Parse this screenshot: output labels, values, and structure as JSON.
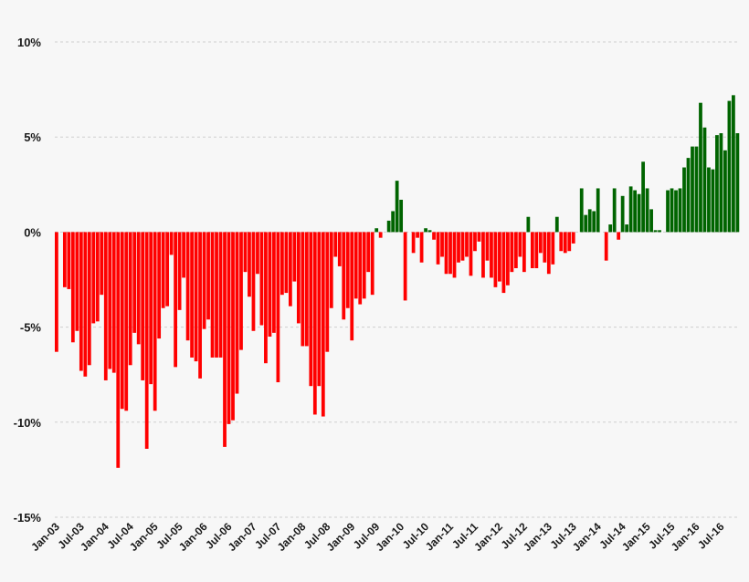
{
  "chart_data": {
    "type": "bar",
    "title": "",
    "xlabel": "",
    "ylabel": "",
    "ylim": [
      -15,
      10
    ],
    "grid": true,
    "legend": "none",
    "yticks": [
      {
        "value": 10,
        "label": "10%"
      },
      {
        "value": 5,
        "label": "5%"
      },
      {
        "value": 0,
        "label": "0%"
      },
      {
        "value": -5,
        "label": "-5%"
      },
      {
        "value": -10,
        "label": "-10%"
      },
      {
        "value": -15,
        "label": "-15%"
      }
    ],
    "xticks": [
      {
        "index": 0,
        "label": "Jan-03"
      },
      {
        "index": 6,
        "label": "Jul-03"
      },
      {
        "index": 12,
        "label": "Jan-04"
      },
      {
        "index": 18,
        "label": "Jul-04"
      },
      {
        "index": 24,
        "label": "Jan-05"
      },
      {
        "index": 30,
        "label": "Jul-05"
      },
      {
        "index": 36,
        "label": "Jan-06"
      },
      {
        "index": 42,
        "label": "Jul-06"
      },
      {
        "index": 48,
        "label": "Jan-07"
      },
      {
        "index": 54,
        "label": "Jul-07"
      },
      {
        "index": 60,
        "label": "Jan-08"
      },
      {
        "index": 66,
        "label": "Jul-08"
      },
      {
        "index": 72,
        "label": "Jan-09"
      },
      {
        "index": 78,
        "label": "Jul-09"
      },
      {
        "index": 84,
        "label": "Jan-10"
      },
      {
        "index": 90,
        "label": "Jul-10"
      },
      {
        "index": 96,
        "label": "Jan-11"
      },
      {
        "index": 102,
        "label": "Jul-11"
      },
      {
        "index": 108,
        "label": "Jan-12"
      },
      {
        "index": 114,
        "label": "Jul-12"
      },
      {
        "index": 120,
        "label": "Jan-13"
      },
      {
        "index": 126,
        "label": "Jul-13"
      },
      {
        "index": 132,
        "label": "Jan-14"
      },
      {
        "index": 138,
        "label": "Jul-14"
      },
      {
        "index": 144,
        "label": "Jan-15"
      },
      {
        "index": 150,
        "label": "Jul-15"
      },
      {
        "index": 156,
        "label": "Jan-16"
      },
      {
        "index": 162,
        "label": "Jul-16"
      }
    ],
    "colors": {
      "positive": "#006400",
      "negative": "#ff0000"
    },
    "values": [
      -6.3,
      0.0,
      -2.9,
      -3.0,
      -5.8,
      -5.2,
      -7.3,
      -7.6,
      -7.0,
      -4.8,
      -4.7,
      -3.3,
      -7.8,
      -7.2,
      -7.4,
      -12.4,
      -9.3,
      -9.4,
      -7.0,
      -5.3,
      -5.9,
      -7.8,
      -11.4,
      -8.0,
      -9.4,
      -5.6,
      -4.0,
      -3.9,
      -1.2,
      -7.1,
      -4.1,
      -2.4,
      -5.7,
      -6.6,
      -6.8,
      -7.7,
      -5.1,
      -4.6,
      -6.6,
      -6.6,
      -6.6,
      -11.3,
      -10.1,
      -9.9,
      -8.5,
      -6.2,
      -2.1,
      -3.4,
      -5.2,
      -2.2,
      -4.9,
      -6.9,
      -5.5,
      -5.3,
      -7.9,
      -3.3,
      -3.2,
      -3.9,
      -2.6,
      -4.8,
      -6.0,
      -6.0,
      -8.1,
      -9.6,
      -8.1,
      -9.7,
      -6.3,
      -4.0,
      -1.3,
      -1.8,
      -4.6,
      -4.0,
      -5.7,
      -3.5,
      -3.8,
      -3.5,
      -2.1,
      -3.3,
      0.2,
      -0.3,
      0.0,
      0.6,
      1.1,
      2.7,
      1.7,
      -3.6,
      0.0,
      -1.1,
      -0.3,
      -1.6,
      0.2,
      0.1,
      -0.4,
      -1.7,
      -1.3,
      -2.2,
      -2.2,
      -2.4,
      -1.6,
      -1.5,
      -1.3,
      -2.3,
      -1.0,
      -0.5,
      -2.4,
      -1.5,
      -2.4,
      -2.9,
      -2.6,
      -3.2,
      -2.8,
      -2.1,
      -1.9,
      -1.3,
      -2.1,
      0.8,
      -1.9,
      -1.9,
      -1.1,
      -1.6,
      -2.2,
      -1.7,
      0.8,
      -1.0,
      -1.1,
      -1.0,
      -0.6,
      0.0,
      2.3,
      0.9,
      1.2,
      1.1,
      2.3,
      0.0,
      -1.5,
      0.4,
      2.3,
      -0.4,
      1.9,
      0.4,
      2.4,
      2.2,
      2.0,
      3.7,
      2.3,
      1.2,
      0.1,
      0.1,
      0.0,
      2.2,
      2.3,
      2.2,
      2.3,
      3.4,
      3.9,
      4.5,
      4.5,
      6.8,
      5.5,
      3.4,
      3.3,
      5.1,
      5.2,
      4.3,
      6.9,
      7.2,
      5.2
    ]
  }
}
